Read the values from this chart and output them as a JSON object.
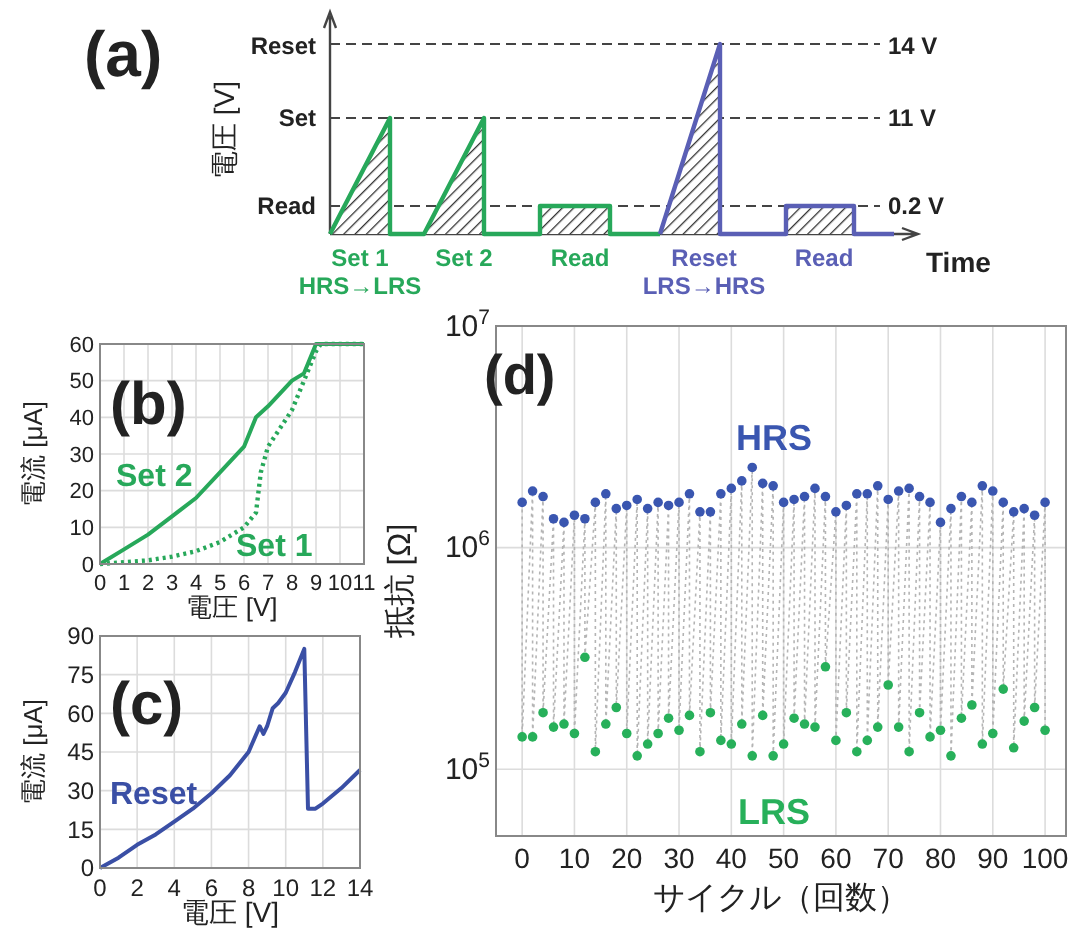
{
  "chart_data": [
    {
      "type": "other",
      "title": "(a)",
      "ylabel": "電圧 [V]",
      "xlabel": "Time",
      "annotations": [
        "Reset",
        "Set",
        "Read",
        "14 V",
        "11 V",
        "0.2 V",
        "Set 1",
        "HRS→LRS",
        "Set 2",
        "Read",
        "Reset",
        "LRS→HRS",
        "Read"
      ]
    },
    {
      "type": "line",
      "title": "(b)",
      "xlabel": "電圧 [V]",
      "ylabel": "電流 [μA]",
      "xlim": [
        0,
        11
      ],
      "xticks": [
        0,
        1,
        2,
        3,
        4,
        5,
        6,
        7,
        8,
        9,
        10,
        11
      ],
      "ylim": [
        0,
        60
      ],
      "yticks": [
        0,
        10,
        20,
        30,
        40,
        50,
        60
      ],
      "grid": true,
      "series": [
        {
          "name": "Set 2",
          "color": "#27a85a",
          "line_style": "solid",
          "x": [
            0,
            1,
            2,
            3,
            4,
            5,
            6,
            6.5,
            7,
            8,
            8.5,
            9,
            11
          ],
          "values": [
            0,
            4,
            8,
            13,
            18,
            25,
            32,
            40,
            43,
            50,
            52,
            60,
            60
          ]
        },
        {
          "name": "Set 1",
          "color": "#27a85a",
          "line_style": "dotted",
          "x": [
            0,
            1,
            2,
            3,
            4,
            5,
            6,
            6.5,
            6.7,
            7,
            8,
            8.5,
            9,
            9.2,
            11
          ],
          "values": [
            0,
            0.5,
            1,
            2,
            3.5,
            6,
            10,
            14,
            25,
            32,
            42,
            50,
            58,
            60,
            60
          ]
        }
      ]
    },
    {
      "type": "line",
      "title": "(c)",
      "xlabel": "電圧 [V]",
      "ylabel": "電流 [μA]",
      "xlim": [
        0,
        14
      ],
      "xticks": [
        0,
        2,
        4,
        6,
        8,
        10,
        12,
        14
      ],
      "ylim": [
        0,
        90
      ],
      "yticks": [
        0,
        15,
        30,
        45,
        60,
        75,
        90
      ],
      "grid": true,
      "series": [
        {
          "name": "Reset",
          "color": "#3a4fa5",
          "line_style": "solid",
          "x": [
            0,
            1,
            2,
            3,
            4,
            5,
            6,
            7,
            8,
            8.6,
            8.8,
            9,
            9.3,
            9.6,
            10,
            10.5,
            11,
            11.2,
            11.6,
            12,
            13,
            14
          ],
          "values": [
            0,
            4,
            9,
            13,
            18,
            23,
            29,
            36,
            45,
            55,
            52,
            55,
            62,
            64,
            68,
            76,
            85,
            23,
            23,
            25,
            31,
            38
          ]
        }
      ]
    },
    {
      "type": "scatter",
      "title": "(d)",
      "xlabel": "サイクル（回数）",
      "ylabel": "抵抗 [Ω]",
      "log": "y",
      "xlim": [
        -5,
        104
      ],
      "xticks": [
        0,
        10,
        20,
        30,
        40,
        50,
        60,
        70,
        80,
        90,
        100
      ],
      "ylim": [
        50000,
        10000000
      ],
      "yticks": [
        {
          "value": 100000,
          "label": "10$^{5}$"
        },
        {
          "value": 1000000,
          "label": "10$^{6}$"
        },
        {
          "value": 10000000,
          "label": "10$^{7}$"
        }
      ],
      "grid": true,
      "series": [
        {
          "type": "line",
          "color": "#b4b4b4",
          "line_style": "dotted",
          "x": [
            0,
            0,
            2,
            2,
            4,
            4,
            6,
            6,
            8,
            8,
            10,
            10,
            12,
            12,
            14,
            14,
            16,
            16,
            18,
            18,
            20,
            20,
            22,
            22,
            24,
            24,
            26,
            26,
            28,
            28,
            30,
            30,
            32,
            32,
            34,
            34,
            36,
            36,
            38,
            38,
            40,
            40,
            42,
            42,
            44,
            44,
            46,
            46,
            48,
            48,
            50,
            50,
            52,
            52,
            54,
            54,
            56,
            56,
            58,
            58,
            60,
            60,
            62,
            62,
            64,
            64,
            66,
            66,
            68,
            68,
            70,
            70,
            72,
            72,
            74,
            74,
            76,
            76,
            78,
            78,
            80,
            80,
            82,
            82,
            84,
            84,
            86,
            86,
            88,
            88,
            90,
            90,
            92,
            92,
            94,
            94,
            96,
            96,
            98,
            98,
            100,
            100
          ],
          "values": [
            1600000,
            140000,
            1800000,
            140000,
            1700000,
            180000,
            1350000,
            155000,
            1300000,
            160000,
            1400000,
            145000,
            1350000,
            320000,
            1600000,
            120000,
            1750000,
            160000,
            1500000,
            190000,
            1550000,
            145000,
            1650000,
            115000,
            1500000,
            130000,
            1600000,
            145000,
            1550000,
            170000,
            1600000,
            150000,
            1750000,
            175000,
            1450000,
            120000,
            1450000,
            180000,
            1750000,
            135000,
            1850000,
            130000,
            2000000,
            160000,
            2300000,
            115000,
            1950000,
            175000,
            1900000,
            115000,
            1600000,
            130000,
            1650000,
            170000,
            1700000,
            160000,
            1850000,
            155000,
            1700000,
            290000,
            1450000,
            135000,
            1550000,
            180000,
            1750000,
            120000,
            1750000,
            135000,
            1900000,
            155000,
            1650000,
            240000,
            1800000,
            155000,
            1850000,
            120000,
            1700000,
            180000,
            1600000,
            140000,
            1300000,
            150000,
            1500000,
            115000,
            1700000,
            170000,
            1600000,
            195000,
            1900000,
            130000,
            1800000,
            145000,
            1600000,
            230000,
            1450000,
            125000,
            1500000,
            165000,
            1400000,
            190000,
            1600000,
            150000
          ]
        },
        {
          "name": "HRS",
          "color": "#3a56b0",
          "marker": "circle",
          "x": [
            0,
            2,
            4,
            6,
            8,
            10,
            12,
            14,
            16,
            18,
            20,
            22,
            24,
            26,
            28,
            30,
            32,
            34,
            36,
            38,
            40,
            42,
            44,
            46,
            48,
            50,
            52,
            54,
            56,
            58,
            60,
            62,
            64,
            66,
            68,
            70,
            72,
            74,
            76,
            78,
            80,
            82,
            84,
            86,
            88,
            90,
            92,
            94,
            96,
            98,
            100
          ],
          "values": [
            1600000,
            1800000,
            1700000,
            1350000,
            1300000,
            1400000,
            1350000,
            1600000,
            1750000,
            1500000,
            1550000,
            1650000,
            1500000,
            1600000,
            1550000,
            1600000,
            1750000,
            1450000,
            1450000,
            1750000,
            1850000,
            2000000,
            2300000,
            1950000,
            1900000,
            1600000,
            1650000,
            1700000,
            1850000,
            1700000,
            1450000,
            1550000,
            1750000,
            1750000,
            1900000,
            1650000,
            1800000,
            1850000,
            1700000,
            1600000,
            1300000,
            1500000,
            1700000,
            1600000,
            1900000,
            1800000,
            1600000,
            1450000,
            1500000,
            1400000,
            1600000
          ]
        },
        {
          "name": "LRS",
          "color": "#27b05a",
          "marker": "circle",
          "x": [
            0,
            2,
            4,
            6,
            8,
            10,
            12,
            14,
            16,
            18,
            20,
            22,
            24,
            26,
            28,
            30,
            32,
            34,
            36,
            38,
            40,
            42,
            44,
            46,
            48,
            50,
            52,
            54,
            56,
            58,
            60,
            62,
            64,
            66,
            68,
            70,
            72,
            74,
            76,
            78,
            80,
            82,
            84,
            86,
            88,
            90,
            92,
            94,
            96,
            98,
            100
          ],
          "values": [
            140000,
            140000,
            180000,
            155000,
            160000,
            145000,
            320000,
            120000,
            160000,
            190000,
            145000,
            115000,
            130000,
            145000,
            170000,
            150000,
            175000,
            120000,
            180000,
            135000,
            130000,
            160000,
            115000,
            175000,
            115000,
            130000,
            170000,
            160000,
            155000,
            290000,
            135000,
            180000,
            120000,
            135000,
            155000,
            240000,
            155000,
            120000,
            180000,
            140000,
            150000,
            115000,
            170000,
            195000,
            130000,
            145000,
            230000,
            125000,
            165000,
            190000,
            150000
          ]
        }
      ]
    }
  ]
}
